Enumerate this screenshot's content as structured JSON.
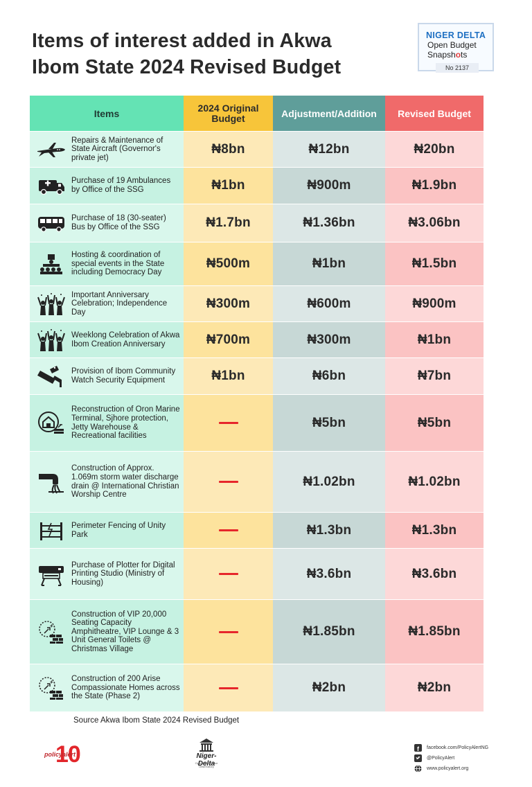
{
  "title_line1": "Items of interest added in Akwa",
  "title_line2": "Ibom State 2024 Revised Budget",
  "badge": {
    "line1": "NIGER DELTA",
    "line2": "Open Budget",
    "line3_a": "Snapsh",
    "line3_ring": "o",
    "line3_b": "ts",
    "number": "No 2137"
  },
  "chart_data": {
    "type": "table",
    "columns": [
      "Items",
      "2024 Original Budget",
      "Adjustment/Addition",
      "Revised Budget"
    ],
    "rows": [
      {
        "item": "Repairs & Maintenance of State Aircraft (Governor's private jet)",
        "icon": "jet-icon",
        "original": "₦8bn",
        "adjustment": "₦12bn",
        "revised": "₦20bn"
      },
      {
        "item": "Purchase of 19 Ambulances by Office of the SSG",
        "icon": "ambulance-icon",
        "original": "₦1bn",
        "adjustment": "₦900m",
        "revised": "₦1.9bn"
      },
      {
        "item": "Purchase of 18 (30-seater) Bus by Office of the SSG",
        "icon": "bus-icon",
        "original": "₦1.7bn",
        "adjustment": "₦1.36bn",
        "revised": "₦3.06bn"
      },
      {
        "item": "Hosting & coordination of special events in the State including Democracy Day",
        "icon": "event-icon",
        "original": "₦500m",
        "adjustment": "₦1bn",
        "revised": "₦1.5bn"
      },
      {
        "item": "Important Anniversary Celebration; Independence Day",
        "icon": "celebration-icon",
        "original": "₦300m",
        "adjustment": "₦600m",
        "revised": "₦900m"
      },
      {
        "item": "Weeklong Celebration of Akwa Ibom Creation Anniversary",
        "icon": "celebration-icon",
        "original": "₦700m",
        "adjustment": "₦300m",
        "revised": "₦1bn"
      },
      {
        "item": "Provision of Ibom Community Watch Security Equipment",
        "icon": "security-camera-icon",
        "original": "₦1bn",
        "adjustment": "₦6bn",
        "revised": "₦7bn"
      },
      {
        "item": "Reconstruction of Oron Marine Terminal, Sjhore protection, Jetty Warehouse & Recreational facilities",
        "icon": "house-construction-icon",
        "original": "—",
        "adjustment": "₦5bn",
        "revised": "₦5bn"
      },
      {
        "item": "Construction of Approx. 1.069m storm water discharge drain @ International Christian Worship Centre",
        "icon": "drain-pipe-icon",
        "original": "—",
        "adjustment": "₦1.02bn",
        "revised": "₦1.02bn"
      },
      {
        "item": "Perimeter Fencing of Unity Park",
        "icon": "fence-icon",
        "original": "—",
        "adjustment": "₦1.3bn",
        "revised": "₦1.3bn"
      },
      {
        "item": "Purchase of Plotter for Digital Printing Studio (Ministry of Housing)",
        "icon": "plotter-icon",
        "original": "—",
        "adjustment": "₦3.6bn",
        "revised": "₦3.6bn"
      },
      {
        "item": "Construction of VIP 20,000 Seating Capacity Amphitheatre, VIP Lounge & 3 Unit General Toilets @ Christmas Village",
        "icon": "brick-construction-icon",
        "original": "—",
        "adjustment": "₦1.85bn",
        "revised": "₦1.85bn"
      },
      {
        "item": "Construction of 200 Arise Compassionate Homes across the State (Phase 2)",
        "icon": "brick-construction-icon",
        "original": "—",
        "adjustment": "₦2bn",
        "revised": "₦2bn"
      }
    ]
  },
  "header": {
    "items": "Items",
    "original_l1": "2024 Original",
    "original_l2": "Budget",
    "adjustment": "Adjustment/Addition",
    "revised": "Revised Budget"
  },
  "source": "Source Akwa Ibom State 2024 Revised Budget",
  "footer": {
    "policyalert_text": "policyalert",
    "policyalert_number": "10",
    "nd_title": "Niger-Delta",
    "nd_sub": "Open Governance Observatory",
    "facebook": "facebook.com/PolicyAlertNG",
    "twitter": "@PolicyAlert",
    "website": "www.policyalert.org"
  },
  "colors": {
    "dash": "#e6262b",
    "header_items": "#64e3b4",
    "header_original": "#f7c53a",
    "header_adjustment": "#5f9e9a",
    "header_revised": "#f06a6a"
  }
}
